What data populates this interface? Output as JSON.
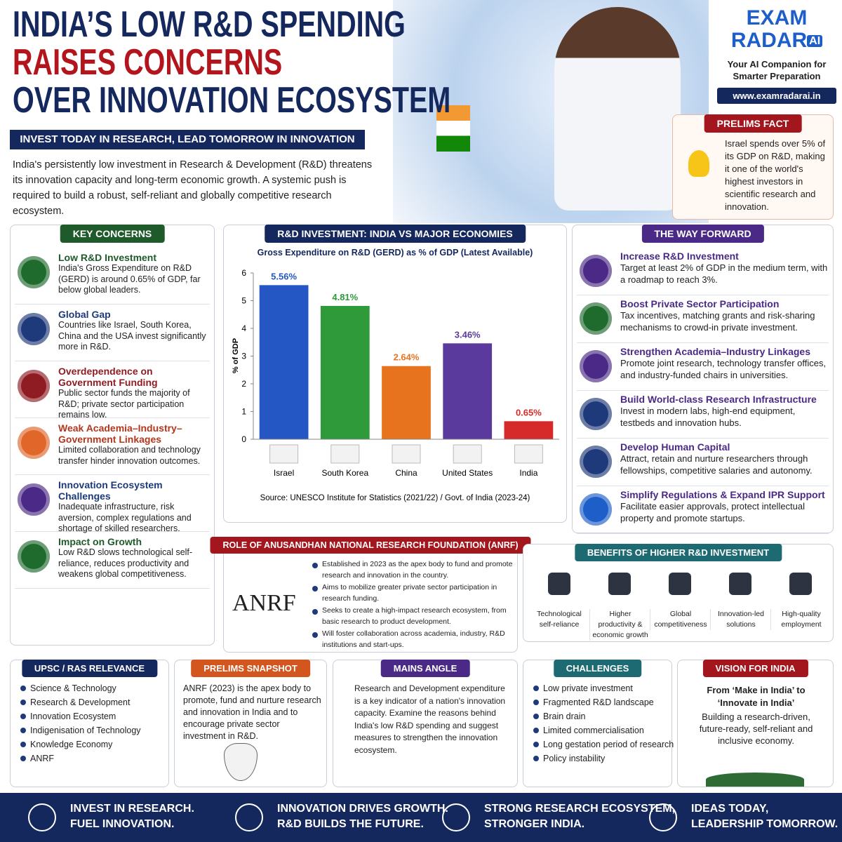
{
  "header": {
    "title_lines": [
      "INDIA’S LOW R&D SPENDING",
      "RAISES CONCERNS",
      "OVER INNOVATION ECOSYSTEM"
    ],
    "tagline": "INVEST TODAY IN RESEARCH, LEAD TOMORROW IN INNOVATION",
    "intro": "India's persistently low investment in Research & Development (R&D) threatens its innovation capacity and long-term economic growth. A systemic push is required to build a robust, self-reliant and globally competitive research ecosystem."
  },
  "brand": {
    "name_top": "EXAM",
    "name_bottom": "RADAR",
    "badge": "AI",
    "tagline": "Your AI Companion for Smarter Preparation",
    "url": "www.examradarai.in"
  },
  "prelims_fact": {
    "title": "PRELIMS FACT",
    "text": "Israel spends over 5% of its GDP on R&D, making it one of the world's highest investors in scientific research and innovation."
  },
  "key_concerns": {
    "title": "KEY CONCERNS",
    "items": [
      {
        "title": "Low R&D Investment",
        "text": "India's Gross Expenditure on R&D (GERD) is around 0.65% of GDP, far below global leaders."
      },
      {
        "title": "Global Gap",
        "text": "Countries like Israel, South Korea, China and the USA invest significantly more in R&D."
      },
      {
        "title": "Overdependence on Government Funding",
        "text": "Public sector funds the majority of R&D; private sector participation remains low."
      },
      {
        "title": "Weak Academia–Industry–Government Linkages",
        "text": "Limited collaboration and technology transfer hinder innovation outcomes."
      },
      {
        "title": "Innovation Ecosystem Challenges",
        "text": "Inadequate infrastructure, risk aversion, complex regulations and shortage of skilled researchers."
      },
      {
        "title": "Impact on Growth",
        "text": "Low R&D slows technological self-reliance, reduces productivity and weakens global competitiveness."
      }
    ]
  },
  "chart_data": {
    "type": "bar",
    "title": "R&D INVESTMENT: INDIA VS MAJOR ECONOMIES",
    "subtitle": "Gross Expenditure on R&D (GERD) as % of GDP (Latest Available)",
    "y_label": "% of GDP",
    "categories": [
      "Israel",
      "South Korea",
      "China",
      "United States",
      "India"
    ],
    "values": [
      5.56,
      4.81,
      2.64,
      3.46,
      0.65
    ],
    "value_labels": [
      "5.56%",
      "4.81%",
      "2.64%",
      "3.46%",
      "0.65%"
    ],
    "colors": [
      "#2456c4",
      "#2e9a3a",
      "#e8731e",
      "#5b3a9e",
      "#d62a2a"
    ],
    "ylim": [
      0,
      6
    ],
    "yticks": [
      0,
      1,
      2,
      3,
      4,
      5,
      6
    ],
    "source": "Source: UNESCO Institute for Statistics (2021/22) / Govt. of India (2023-24)"
  },
  "way_forward": {
    "title": "THE WAY FORWARD",
    "items": [
      {
        "title": "Increase R&D Investment",
        "text": "Target at least 2% of GDP in the medium term, with a roadmap to reach 3%."
      },
      {
        "title": "Boost Private Sector Participation",
        "text": "Tax incentives, matching grants and risk-sharing mechanisms to crowd-in private investment."
      },
      {
        "title": "Strengthen Academia–Industry Linkages",
        "text": "Promote joint research, technology transfer offices, and industry-funded chairs in universities."
      },
      {
        "title": "Build World-class Research Infrastructure",
        "text": "Invest in modern labs, high-end equipment, testbeds and innovation hubs."
      },
      {
        "title": "Develop Human Capital",
        "text": "Attract, retain and nurture researchers through fellowships, competitive salaries and autonomy."
      },
      {
        "title": "Simplify Regulations & Expand IPR Support",
        "text": "Facilitate easier approvals, protect intellectual property and promote startups."
      }
    ]
  },
  "anrf": {
    "title": "ROLE OF ANUSANDHAN NATIONAL RESEARCH FOUNDATION (ANRF)",
    "logo": "ANRF",
    "points": [
      "Established in 2023 as the apex body to fund and promote research and innovation in the country.",
      "Aims to mobilize greater private sector participation in research funding.",
      "Seeks to create a high-impact research ecosystem, from basic research to product development.",
      "Will foster collaboration across academia, industry, R&D institutions and start-ups."
    ]
  },
  "benefits": {
    "title": "BENEFITS OF HIGHER R&D INVESTMENT",
    "items": [
      "Technological self-reliance",
      "Higher productivity & economic growth",
      "Global competitiveness",
      "Innovation-led solutions",
      "High-quality employment"
    ]
  },
  "upsc": {
    "title": "UPSC / RAS RELEVANCE",
    "items": [
      "Science & Technology",
      "Research & Development",
      "Innovation Ecosystem",
      "Indigenisation of Technology",
      "Knowledge Economy",
      "ANRF"
    ]
  },
  "prelims_snapshot": {
    "title": "PRELIMS SNAPSHOT",
    "text": "ANRF (2023) is the apex body to promote, fund and nurture research and innovation in India and to encourage private sector investment in R&D."
  },
  "mains_angle": {
    "title": "MAINS ANGLE",
    "text": "Research and Development expenditure is a key indicator of a nation's innovation capacity. Examine the reasons behind India's low R&D spending and suggest measures to strengthen the innovation ecosystem."
  },
  "challenges": {
    "title": "CHALLENGES",
    "items": [
      "Low private investment",
      "Fragmented R&D landscape",
      "Brain drain",
      "Limited commercialisation",
      "Long gestation period of research",
      "Policy instability"
    ]
  },
  "vision": {
    "title": "VISION FOR INDIA",
    "headline": "From ‘Make in India’ to ‘Innovate in India’",
    "text": "Building a research-driven, future-ready, self-reliant and inclusive economy."
  },
  "footer": {
    "items": [
      [
        "INVEST IN RESEARCH.",
        "FUEL INNOVATION."
      ],
      [
        "INNOVATION DRIVES GROWTH.",
        "R&D BUILDS THE FUTURE."
      ],
      [
        "STRONG RESEARCH ECOSYSTEM,",
        "STRONGER INDIA."
      ],
      [
        "IDEAS TODAY,",
        "LEADERSHIP TOMORROW."
      ]
    ]
  }
}
